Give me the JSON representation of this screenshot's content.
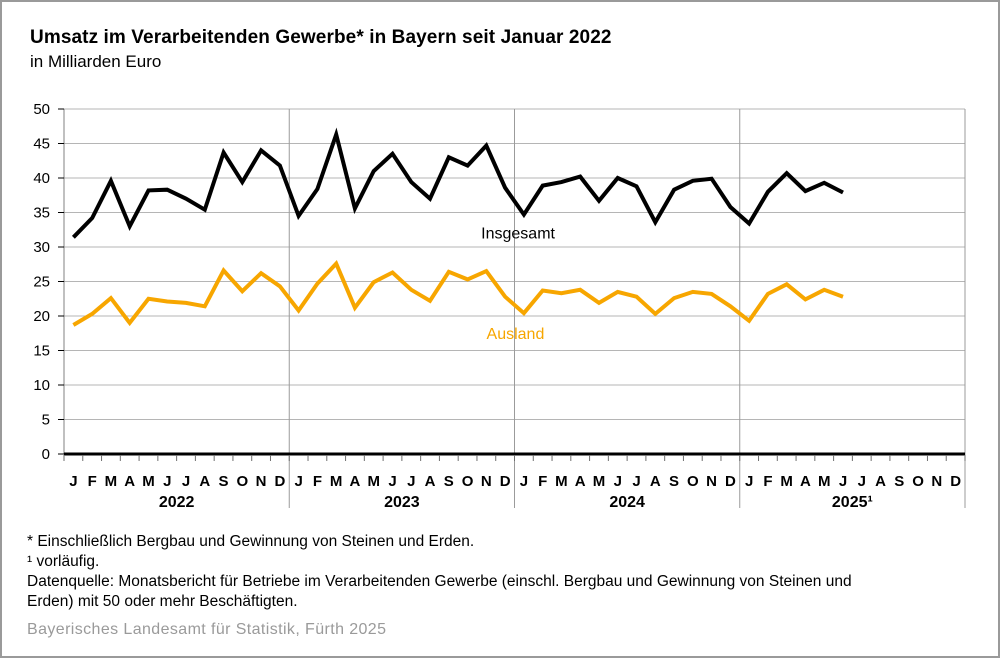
{
  "colors": {
    "grid": "#b5b5b5",
    "year_divider": "#9b9b9b",
    "x_axis": "#000000",
    "y_axis": "#808080",
    "y_tick": "#000000",
    "month_tick": "#6e6e6e",
    "publisher_text": "#9a9a9a",
    "page_border": "#9a9a9a"
  },
  "chart_data": {
    "type": "line",
    "title": "Umsatz im Verarbeitenden Gewerbe* in Bayern seit Januar 2022",
    "subtitle": "in Milliarden Euro",
    "ylabel": "",
    "xlabel": "",
    "ylim": [
      0,
      50
    ],
    "ytick_step": 5,
    "grid": true,
    "legend_position": "inline-labels",
    "month_letters": [
      "J",
      "F",
      "M",
      "A",
      "M",
      "J",
      "J",
      "A",
      "S",
      "O",
      "N",
      "D"
    ],
    "year_labels": [
      "2022",
      "2023",
      "2024",
      "2025¹"
    ],
    "months_per_year": 12,
    "series": [
      {
        "name": "Insgesamt",
        "color": "#000000",
        "label": {
          "x_slot": 24.19,
          "y_value": 32.0
        },
        "values": [
          31.4,
          34.2,
          39.6,
          33.0,
          38.2,
          38.3,
          37.0,
          35.4,
          43.7,
          39.4,
          44.0,
          41.8,
          34.5,
          38.4,
          46.3,
          35.6,
          41.0,
          43.5,
          39.4,
          37.0,
          43.0,
          41.8,
          44.7,
          38.6,
          34.7,
          38.9,
          39.4,
          40.2,
          36.7,
          40.0,
          38.8,
          33.6,
          38.3,
          39.6,
          39.9,
          35.8,
          33.4,
          38.0,
          40.7,
          38.1,
          39.3,
          37.9
        ]
      },
      {
        "name": "Ausland",
        "color": "#f7a600",
        "label": {
          "x_slot": 24.05,
          "y_value": 17.5
        },
        "values": [
          18.7,
          20.3,
          22.6,
          19.0,
          22.5,
          22.1,
          21.9,
          21.4,
          26.6,
          23.6,
          26.2,
          24.3,
          20.8,
          24.7,
          27.6,
          21.2,
          24.9,
          26.3,
          23.8,
          22.2,
          26.4,
          25.3,
          26.5,
          22.8,
          20.4,
          23.7,
          23.3,
          23.8,
          21.9,
          23.5,
          22.8,
          20.3,
          22.6,
          23.5,
          23.2,
          21.4,
          19.3,
          23.2,
          24.6,
          22.4,
          23.8,
          22.8
        ]
      }
    ]
  },
  "footnotes": {
    "star": "* Einschließlich Bergbau und Gewinnung von Steinen und Erden.",
    "preliminary": "¹ vorläufig.",
    "datasource_line1": "Datenquelle: Monatsbericht für Betriebe im Verarbeitenden Gewerbe (einschl. Bergbau und Gewinnung von Steinen und",
    "datasource_line2": "Erden) mit 50 oder mehr Beschäftigten.",
    "publisher": "Bayerisches Landesamt für Statistik, Fürth 2025"
  }
}
